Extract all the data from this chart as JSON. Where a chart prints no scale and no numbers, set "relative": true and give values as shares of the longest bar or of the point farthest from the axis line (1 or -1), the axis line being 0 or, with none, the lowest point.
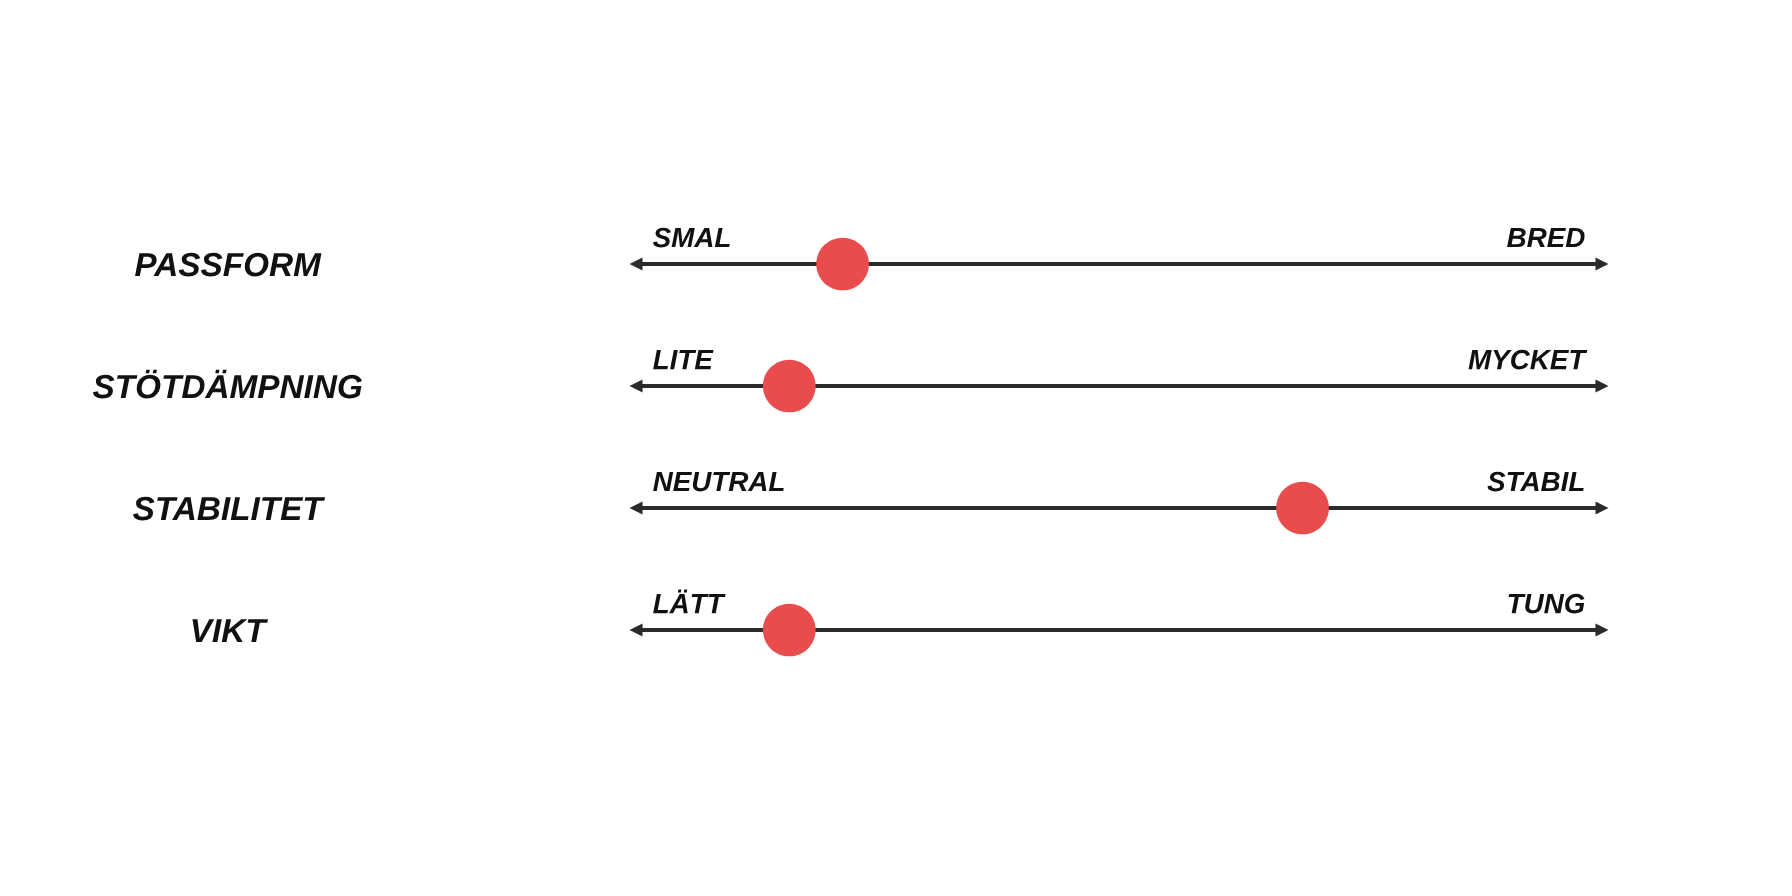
{
  "chart_data": {
    "type": "scatter",
    "orientation": "horizontal",
    "relative": true,
    "categories": [
      "PASSFORM",
      "STÖTDÄMPNING",
      "STABILITET",
      "VIKT"
    ],
    "values": [
      0.31,
      0.23,
      1,
      0.23
    ],
    "color": "#e84c4c",
    "marker": "circle",
    "grid": "y",
    "annotations": [
      "SMAL",
      "BRED",
      "LITE",
      "MYCKET",
      "NEUTRAL",
      "STABIL",
      "LÄTT",
      "TUNG"
    ]
  }
}
